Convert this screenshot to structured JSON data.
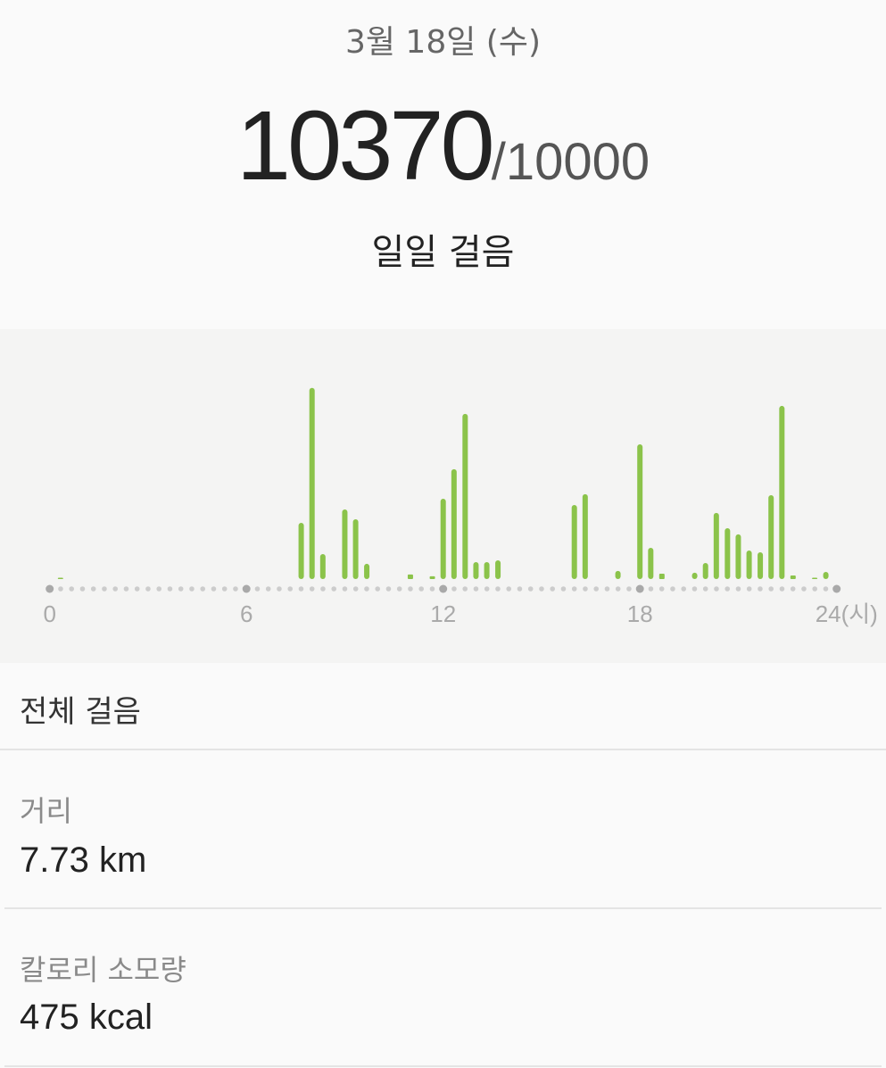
{
  "header": {
    "date": "3월 18일 (수)",
    "step_count": "10370",
    "step_goal": "/10000",
    "subtitle": "일일 걸음"
  },
  "chart_data": {
    "type": "bar",
    "x_unit_label": "(시)",
    "xlim": [
      0,
      24
    ],
    "ylim": [
      0,
      1300
    ],
    "x_ticks": [
      "0",
      "6",
      "12",
      "18",
      "24(시)"
    ],
    "x_tick_values": [
      0,
      6,
      12,
      18,
      24
    ],
    "bin_hours": 0.333,
    "bar_color": "#8bc34a",
    "grid": false,
    "x": [
      0.33,
      7.67,
      8.0,
      8.33,
      9.0,
      9.33,
      9.67,
      11.0,
      11.67,
      12.0,
      12.33,
      12.67,
      13.0,
      13.33,
      13.67,
      16.0,
      16.33,
      17.33,
      18.0,
      18.33,
      18.67,
      19.67,
      20.0,
      20.33,
      20.67,
      21.0,
      21.33,
      21.67,
      22.0,
      22.33,
      22.67,
      23.33,
      23.67
    ],
    "values": [
      6,
      347,
      1180,
      154,
      430,
      369,
      94,
      28,
      17,
      496,
      678,
      1020,
      105,
      105,
      116,
      457,
      524,
      50,
      832,
      193,
      33,
      39,
      99,
      408,
      314,
      276,
      176,
      165,
      518,
      1069,
      22,
      6,
      44
    ]
  },
  "summary": {
    "title": "전체 걸음",
    "distance_label": "거리",
    "distance_value": "7.73 km",
    "calories_label": "칼로리 소모량",
    "calories_value": "475 kcal"
  }
}
